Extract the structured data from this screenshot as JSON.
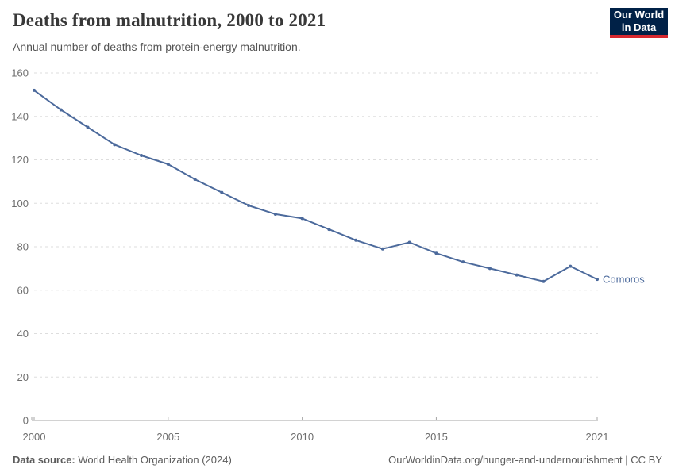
{
  "header": {
    "title": "Deaths from malnutrition, 2000 to 2021",
    "subtitle": "Annual number of deaths from protein-energy malnutrition.",
    "logo_line1": "Our World",
    "logo_line2": "in Data"
  },
  "chart_data": {
    "type": "line",
    "title": "Deaths from malnutrition, 2000 to 2021",
    "xlabel": "",
    "ylabel": "",
    "x": [
      2000,
      2001,
      2002,
      2003,
      2004,
      2005,
      2006,
      2007,
      2008,
      2009,
      2010,
      2011,
      2012,
      2013,
      2014,
      2015,
      2016,
      2017,
      2018,
      2019,
      2020,
      2021
    ],
    "series": [
      {
        "name": "Comoros",
        "color": "#4c6a9c",
        "values": [
          152,
          143,
          135,
          127,
          122,
          118,
          111,
          105,
          99,
          95,
          93,
          88,
          83,
          79,
          82,
          77,
          73,
          70,
          67,
          64,
          71,
          65
        ]
      }
    ],
    "ylim": [
      0,
      160
    ],
    "yticks": [
      0,
      20,
      40,
      60,
      80,
      100,
      120,
      140,
      160
    ],
    "xticks": [
      2000,
      2005,
      2010,
      2015,
      2021
    ],
    "grid": "horizontal-dashed",
    "legend_position": "end-of-line"
  },
  "footer": {
    "source_label": "Data source:",
    "source_value": "World Health Organization (2024)",
    "credit": "OurWorldinData.org/hunger-and-undernourishment | CC BY"
  },
  "colors": {
    "series": "#4c6a9c",
    "grid": "#dddddd",
    "axis": "#a5a5a5",
    "tick_text": "#6e6e6e",
    "logo_bg": "#002147",
    "logo_accent": "#d7282f"
  }
}
